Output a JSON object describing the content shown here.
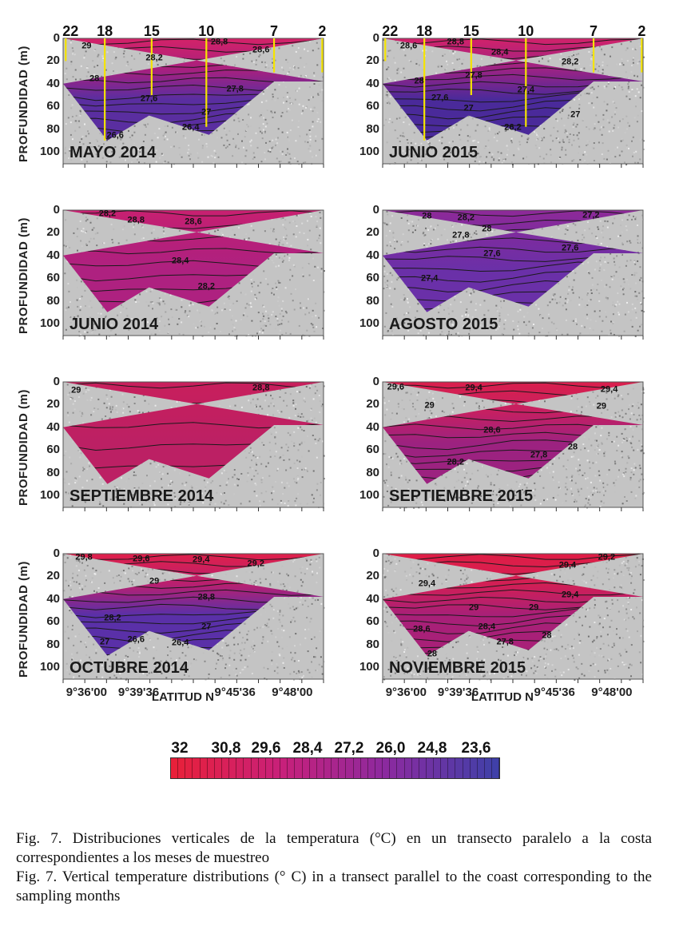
{
  "figure": {
    "y_axis_title": "PROFUNDIDAD (m)",
    "y_ticks": [
      "0",
      "20",
      "40",
      "60",
      "80",
      "100"
    ],
    "x_ticks": [
      "9°36'00",
      "9°39'36",
      "9°45'36",
      "9°48'00"
    ],
    "x_axis_title": "LATITUD N",
    "stations": [
      "22",
      "18",
      "15",
      "10",
      "7",
      "2"
    ],
    "panels": [
      {
        "title": "MAYO 2014",
        "colors": [
          "#d42268",
          "#a8207e",
          "#5a2ea0"
        ],
        "labels": [
          "29",
          "28,8",
          "28,6",
          "28,2",
          "28",
          "27,8",
          "27,6",
          "27",
          "26,4",
          "26,6"
        ]
      },
      {
        "title": "JUNIO 2015",
        "colors": [
          "#d2226a",
          "#9c2384",
          "#4a2a9a"
        ],
        "labels": [
          "28,6",
          "28,8",
          "28,4",
          "28,2",
          "28",
          "27,8",
          "27,4",
          "27,6",
          "27",
          "27",
          "26,2"
        ]
      },
      {
        "title": "JUNIO 2014",
        "colors": [
          "#c82070",
          "#b6207a",
          "#ae2180"
        ],
        "labels": [
          "28,2",
          "28,8",
          "28,6",
          "28,4",
          "28,2"
        ]
      },
      {
        "title": "AGOSTO 2015",
        "colors": [
          "#8e2a98",
          "#7a2ca0",
          "#6a30a8"
        ],
        "labels": [
          "28",
          "28,2",
          "27,2",
          "27,8",
          "28",
          "27,6",
          "27,6",
          "27,4"
        ]
      },
      {
        "title": "SEPTIEMBRE 2014",
        "colors": [
          "#c81f5c",
          "#c21f60",
          "#bc2064"
        ],
        "labels": [
          "29",
          "28,8"
        ]
      },
      {
        "title": "SEPTIEMBRE 2015",
        "colors": [
          "#da1f4c",
          "#c52062",
          "#9c2280"
        ],
        "labels": [
          "29,6",
          "29,4",
          "29,4",
          "29",
          "29",
          "28,6",
          "28,2",
          "27,8",
          "28"
        ]
      },
      {
        "title": "OCTUBRE 2014",
        "colors": [
          "#e0204a",
          "#b82070",
          "#5a30a8"
        ],
        "labels": [
          "29,8",
          "29,6",
          "29,4",
          "29,2",
          "29",
          "28,8",
          "28,2",
          "27",
          "26,6",
          "26,4",
          "27"
        ]
      },
      {
        "title": "NOVIEMBRE 2015",
        "colors": [
          "#e01d45",
          "#d21f55",
          "#a82078"
        ],
        "labels": [
          "29,2",
          "29,4",
          "29,4",
          "29,4",
          "29",
          "29",
          "28,6",
          "28,4",
          "28",
          "27,8",
          "28"
        ]
      }
    ]
  },
  "colorbar": {
    "labels": [
      "32",
      "30,8",
      "29,6",
      "28,4",
      "27,2",
      "26,0",
      "24,8",
      "23,6"
    ],
    "colors": [
      "#e8203a",
      "#c8207a",
      "#8a2aa0",
      "#4040a8"
    ]
  },
  "caption": {
    "spanish": "Fig. 7. Distribuciones verticales de la temperatura (°C) en un transecto paralelo a la costa correspondientes a los meses de muestreo",
    "english": "Fig. 7. Vertical temperature distributions (° C) in a transect parallel to the coast corresponding to the sampling months"
  }
}
